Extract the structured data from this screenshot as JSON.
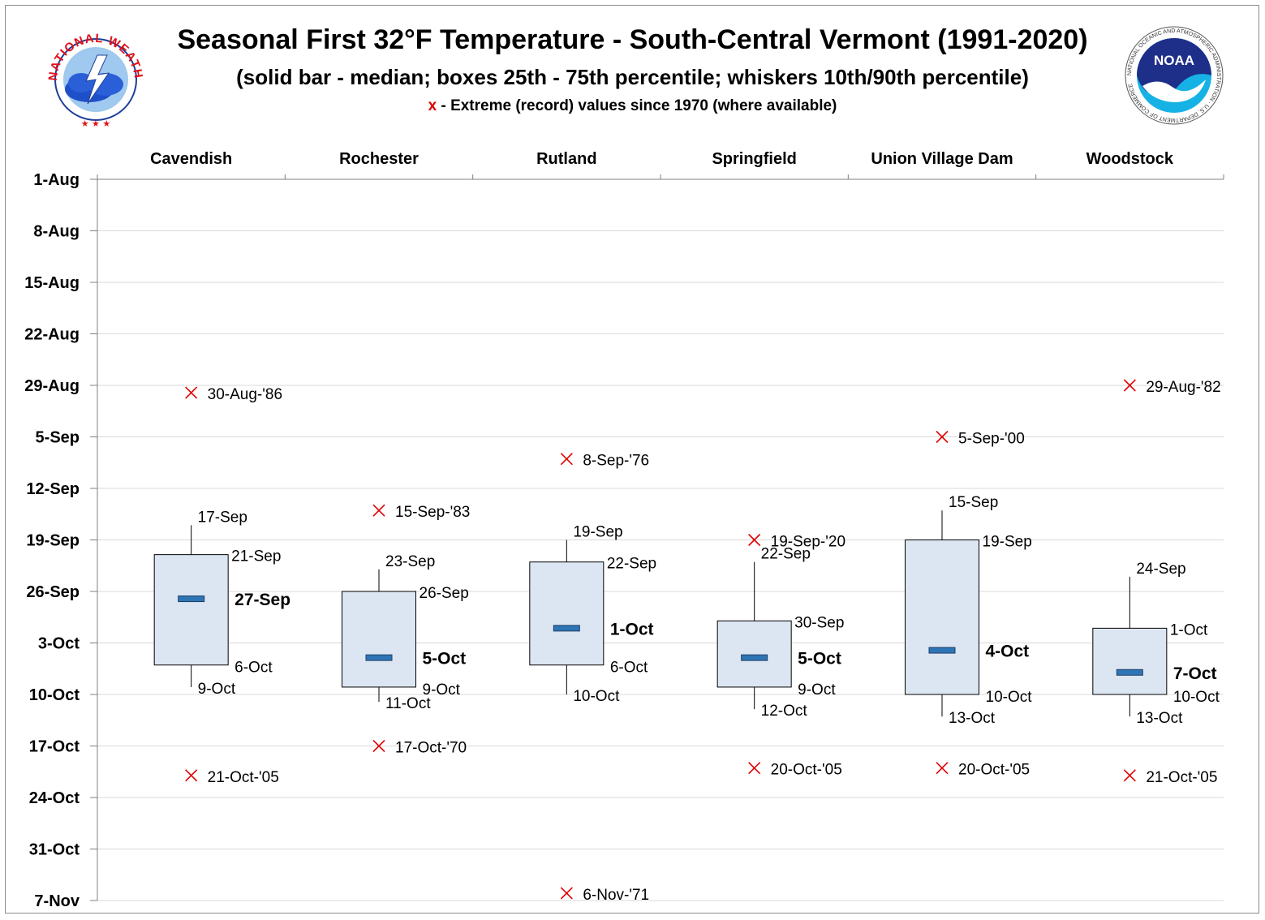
{
  "header": {
    "title": "Seasonal First 32°F Temperature - South-Central Vermont (1991-2020)",
    "subtitle": "(solid bar - median; boxes 25th - 75th percentile; whiskers 10th/90th percentile)",
    "legend_mark": "x",
    "legend_text": " - Extreme (record) values since 1970 (where available)"
  },
  "logos": {
    "nws_text": "NATIONAL WEATHER SERVICE",
    "noaa_text": "NOAA",
    "noaa_ring_text": "NATIONAL OCEANIC AND ATMOSPHERIC ADMINISTRATION · U.S. DEPARTMENT OF COMMERCE"
  },
  "colors": {
    "box_fill": "#dce6f2",
    "box_stroke": "#000000",
    "median": "#2e75b6",
    "extreme": "#e00000",
    "grid": "#d9d9d9",
    "axis": "#808080"
  },
  "chart_data": {
    "type": "box",
    "y_axis_reversed": true,
    "y_range": [
      "1-Aug",
      "7-Nov"
    ],
    "y_tick_labels": [
      "1-Aug",
      "8-Aug",
      "15-Aug",
      "22-Aug",
      "29-Aug",
      "5-Sep",
      "12-Sep",
      "19-Sep",
      "26-Sep",
      "3-Oct",
      "10-Oct",
      "17-Oct",
      "24-Oct",
      "31-Oct",
      "7-Nov"
    ],
    "grid": true,
    "stations": [
      {
        "name": "Cavendish",
        "p10": "17-Sep",
        "p25": "21-Sep",
        "median": "27-Sep",
        "p75": "6-Oct",
        "p90": "9-Oct",
        "earliest_record": "30-Aug-'86",
        "latest_record": "21-Oct-'05"
      },
      {
        "name": "Rochester",
        "p10": "23-Sep",
        "p25": "26-Sep",
        "median": "5-Oct",
        "p75": "9-Oct",
        "p90": "11-Oct",
        "earliest_record": "15-Sep-'83",
        "latest_record": "17-Oct-'70"
      },
      {
        "name": "Rutland",
        "p10": "19-Sep",
        "p25": "22-Sep",
        "median": "1-Oct",
        "p75": "6-Oct",
        "p90": "10-Oct",
        "earliest_record": "8-Sep-'76",
        "latest_record": "6-Nov-'71"
      },
      {
        "name": "Springfield",
        "p10": "22-Sep",
        "p25": "30-Sep",
        "median": "5-Oct",
        "p75": "9-Oct",
        "p90": "12-Oct",
        "earliest_record": "19-Sep-'20",
        "latest_record": "20-Oct-'05"
      },
      {
        "name": "Union Village Dam",
        "p10": "15-Sep",
        "p25": "19-Sep",
        "median": "4-Oct",
        "p75": "10-Oct",
        "p90": "13-Oct",
        "earliest_record": "5-Sep-'00",
        "latest_record": "20-Oct-'05"
      },
      {
        "name": "Woodstock",
        "p10": "24-Sep",
        "p25": "1-Oct",
        "median": "7-Oct",
        "p75": "10-Oct",
        "p90": "13-Oct",
        "earliest_record": "29-Aug-'82",
        "latest_record": "21-Oct-'05"
      }
    ]
  }
}
